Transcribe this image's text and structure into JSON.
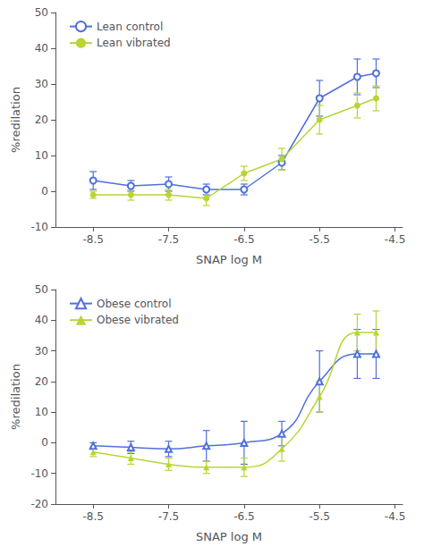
{
  "chart_data": [
    {
      "type": "line",
      "xlabel": "SNAP log M",
      "ylabel": "%redilation",
      "x": [
        -8.5,
        -8.0,
        -7.5,
        -7.0,
        -6.5,
        -6.0,
        -5.5,
        -5.0,
        -4.75
      ],
      "xlim": [
        -9.0,
        -4.4
      ],
      "xticks": [
        -8.5,
        -7.5,
        -6.5,
        -5.5,
        -4.5
      ],
      "ylim": [
        -10,
        50
      ],
      "yticks": [
        -10,
        0,
        10,
        20,
        30,
        40,
        50
      ],
      "grid": false,
      "legend": "upper left",
      "line_style": "solid",
      "series": [
        {
          "name": "Lean control",
          "marker": "open_circle",
          "values": [
            3,
            1.5,
            2,
            0.5,
            0.5,
            8,
            26,
            32,
            33
          ],
          "err": [
            2.5,
            1.5,
            2,
            1.5,
            1.5,
            2,
            5,
            5,
            4
          ]
        },
        {
          "name": "Lean vibrated",
          "marker": "circle",
          "values": [
            -1,
            -1,
            -1,
            -2,
            5,
            9,
            20,
            24,
            26
          ],
          "err": [
            1,
            1.5,
            1.5,
            2,
            2,
            3,
            4,
            3.5,
            3.5
          ]
        }
      ]
    },
    {
      "type": "line",
      "xlabel": "SNAP log M",
      "ylabel": "%redilation",
      "x": [
        -8.5,
        -8.0,
        -7.5,
        -7.0,
        -6.5,
        -6.0,
        -5.5,
        -5.0,
        -4.75
      ],
      "xlim": [
        -9.0,
        -4.4
      ],
      "xticks": [
        -8.5,
        -7.5,
        -6.5,
        -5.5,
        -4.5
      ],
      "ylim": [
        -20,
        50
      ],
      "yticks": [
        -20,
        -10,
        0,
        10,
        20,
        30,
        40,
        50
      ],
      "grid": false,
      "legend": "upper left",
      "line_style": "smooth",
      "series": [
        {
          "name": "Obese control",
          "marker": "open_triangle",
          "values": [
            -1,
            -1.5,
            -2,
            -1,
            0,
            3,
            20,
            29,
            29
          ],
          "err": [
            1,
            2,
            2.5,
            5,
            7,
            4,
            10,
            8,
            8
          ]
        },
        {
          "name": "Obese vibrated",
          "marker": "triangle",
          "values": [
            -3,
            -5,
            -7,
            -8,
            -8,
            -2,
            15,
            36,
            36
          ],
          "err": [
            1.5,
            2,
            2,
            2,
            3,
            4,
            5,
            6,
            7
          ]
        }
      ]
    }
  ]
}
